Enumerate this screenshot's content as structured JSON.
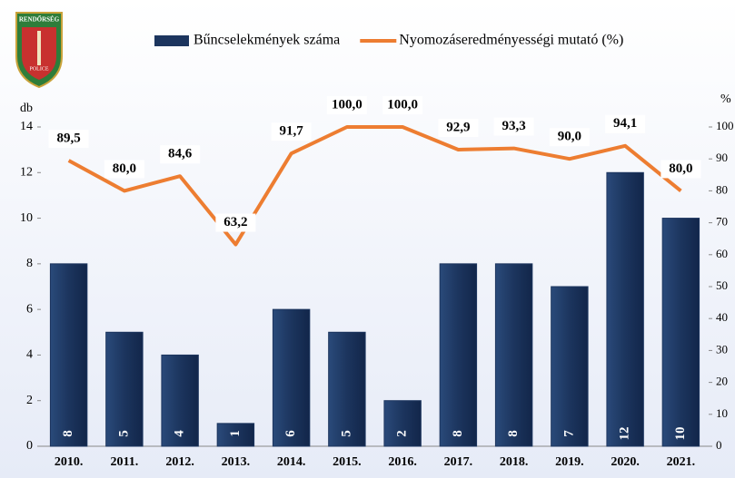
{
  "logo": {
    "top": "RENDŐRSÉG",
    "bottom": "POLICE"
  },
  "chart_data": {
    "type": "bar",
    "categories": [
      "2010.",
      "2011.",
      "2012.",
      "2013.",
      "2014.",
      "2015.",
      "2016.",
      "2017.",
      "2018.",
      "2019.",
      "2020.",
      "2021."
    ],
    "y_label": "db",
    "y2_label": "%",
    "ylim": [
      0,
      14
    ],
    "yticks": [
      0,
      2,
      4,
      6,
      8,
      10,
      12,
      14
    ],
    "y2lim": [
      0,
      100
    ],
    "y2ticks": [
      0,
      10,
      20,
      30,
      40,
      50,
      60,
      70,
      80,
      90,
      100
    ],
    "series": [
      {
        "name": "Bűncselekmények száma",
        "type": "bar",
        "color": "#1c355e",
        "values": [
          8,
          5,
          4,
          1,
          6,
          5,
          2,
          8,
          8,
          7,
          12,
          10
        ]
      },
      {
        "name": "Nyomozáseredményességi mutató (%)",
        "type": "line",
        "axis": "y2",
        "color": "#ed7d31",
        "values": [
          89.5,
          80.0,
          84.6,
          63.2,
          91.7,
          100.0,
          100.0,
          92.9,
          93.3,
          90.0,
          94.1,
          80.0
        ],
        "value_labels": [
          "89,5",
          "80,0",
          "84,6",
          "63,2",
          "91,7",
          "100,0",
          "100,0",
          "92,9",
          "93,3",
          "90,0",
          "94,1",
          "80,0"
        ]
      }
    ]
  }
}
